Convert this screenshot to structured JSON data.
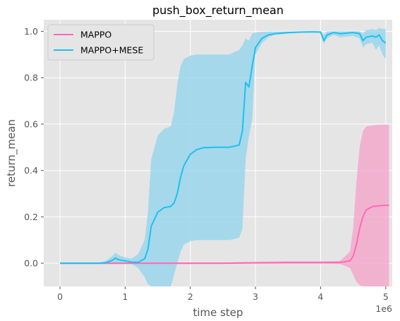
{
  "chart_data": {
    "type": "line",
    "title": "push_box_return_mean",
    "xlabel": "time step",
    "ylabel": "return_mean",
    "x_offset_label": "1e6",
    "xlim": [
      -0.25,
      5.1
    ],
    "ylim": [
      -0.1,
      1.05
    ],
    "x_ticks": [
      0,
      1,
      2,
      3,
      4,
      5
    ],
    "y_ticks": [
      0.0,
      0.2,
      0.4,
      0.6,
      0.8,
      1.0
    ],
    "x_tick_labels": [
      "0",
      "1",
      "2",
      "3",
      "4",
      "5"
    ],
    "y_tick_labels": [
      "0.0",
      "0.2",
      "0.4",
      "0.6",
      "0.8",
      "1.0"
    ],
    "grid": true,
    "background_color": "#e5e5e5",
    "legend_position": "top-left",
    "series": [
      {
        "name": "MAPPO",
        "color": "#ff69b4",
        "band_color": "#f4a0c8",
        "x": [
          0,
          0.5,
          1.0,
          1.5,
          2.0,
          2.5,
          3.0,
          3.5,
          4.0,
          4.3,
          4.45,
          4.5,
          4.55,
          4.6,
          4.65,
          4.7,
          4.8,
          4.9,
          5.0,
          5.05
        ],
        "mean": [
          0,
          0,
          0,
          0,
          0,
          0,
          0.002,
          0.003,
          0.003,
          0.003,
          0.01,
          0.03,
          0.08,
          0.15,
          0.2,
          0.23,
          0.245,
          0.248,
          0.25,
          0.25
        ],
        "lower": [
          -0.003,
          -0.003,
          -0.003,
          -0.003,
          -0.003,
          -0.003,
          -0.002,
          -0.002,
          -0.002,
          -0.003,
          -0.02,
          -0.05,
          -0.08,
          -0.095,
          -0.1,
          -0.1,
          -0.1,
          -0.1,
          -0.1,
          -0.1
        ],
        "upper": [
          0.003,
          0.003,
          0.003,
          0.003,
          0.003,
          0.003,
          0.006,
          0.008,
          0.008,
          0.01,
          0.05,
          0.15,
          0.35,
          0.5,
          0.57,
          0.59,
          0.595,
          0.597,
          0.598,
          0.598
        ]
      },
      {
        "name": "MAPPO+MESE",
        "color": "#1ec0f0",
        "band_color": "#8fd3ec",
        "x": [
          0,
          0.6,
          0.7,
          0.8,
          0.85,
          0.9,
          1.0,
          1.1,
          1.2,
          1.3,
          1.35,
          1.4,
          1.5,
          1.6,
          1.7,
          1.75,
          1.8,
          1.85,
          1.9,
          2.0,
          2.1,
          2.2,
          2.4,
          2.6,
          2.75,
          2.8,
          2.85,
          2.9,
          2.95,
          3.0,
          3.1,
          3.2,
          3.3,
          3.5,
          3.7,
          3.9,
          4.0,
          4.05,
          4.1,
          4.2,
          4.3,
          4.5,
          4.6,
          4.65,
          4.7,
          4.8,
          4.85,
          4.9,
          4.95,
          5.0
        ],
        "mean": [
          0,
          0,
          0.002,
          0.012,
          0.022,
          0.015,
          0.01,
          0.005,
          0.004,
          0.02,
          0.06,
          0.16,
          0.22,
          0.24,
          0.245,
          0.26,
          0.3,
          0.37,
          0.42,
          0.47,
          0.49,
          0.498,
          0.5,
          0.5,
          0.51,
          0.57,
          0.78,
          0.76,
          0.85,
          0.93,
          0.97,
          0.985,
          0.99,
          0.995,
          0.997,
          0.998,
          0.997,
          0.96,
          0.985,
          0.995,
          0.99,
          0.995,
          0.99,
          0.96,
          0.975,
          0.98,
          0.975,
          0.985,
          0.96,
          0.95
        ],
        "lower": [
          -0.003,
          -0.003,
          -0.004,
          -0.003,
          -0.003,
          -0.003,
          -0.003,
          -0.004,
          -0.02,
          -0.06,
          -0.09,
          -0.1,
          -0.1,
          -0.1,
          -0.1,
          -0.05,
          0.0,
          0.05,
          0.08,
          0.095,
          0.1,
          0.1,
          0.1,
          0.1,
          0.11,
          0.15,
          0.45,
          0.55,
          0.62,
          0.9,
          0.95,
          0.975,
          0.985,
          0.99,
          0.993,
          0.995,
          0.993,
          0.945,
          0.97,
          0.985,
          0.975,
          0.98,
          0.97,
          0.93,
          0.945,
          0.95,
          0.92,
          0.94,
          0.9,
          0.88
        ],
        "upper": [
          0.003,
          0.003,
          0.01,
          0.03,
          0.045,
          0.035,
          0.025,
          0.02,
          0.04,
          0.1,
          0.22,
          0.45,
          0.55,
          0.58,
          0.59,
          0.65,
          0.77,
          0.85,
          0.88,
          0.895,
          0.9,
          0.9,
          0.9,
          0.9,
          0.92,
          0.94,
          0.97,
          0.96,
          0.99,
          0.995,
          0.998,
          0.999,
          0.999,
          0.999,
          0.999,
          1.0,
          1.0,
          0.985,
          1.0,
          1.0,
          1.0,
          1.0,
          1.0,
          0.99,
          1.005,
          1.01,
          1.005,
          1.015,
          1.01,
          1.01
        ]
      }
    ]
  }
}
